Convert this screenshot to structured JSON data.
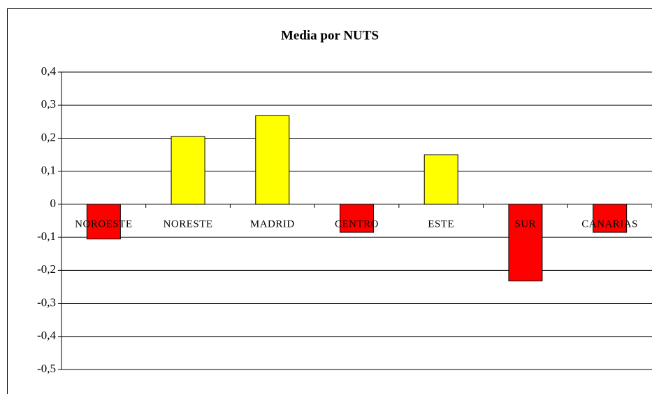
{
  "chart_data": {
    "type": "bar",
    "title": "Media por NUTS",
    "categories": [
      "NOROESTE",
      "NORESTE",
      "MADRID",
      "CENTRO",
      "ESTE",
      "SUR",
      "CANARIAS"
    ],
    "values": [
      -0.105,
      0.205,
      0.268,
      -0.085,
      0.15,
      -0.232,
      -0.085
    ],
    "colors": [
      "#ff0000",
      "#ffff00",
      "#ffff00",
      "#ff0000",
      "#ffff00",
      "#ff0000",
      "#ff0000"
    ],
    "ylim": [
      -0.5,
      0.4
    ],
    "yticks": [
      {
        "value": -0.5,
        "label": "-0,5"
      },
      {
        "value": -0.4,
        "label": "-0,4"
      },
      {
        "value": -0.3,
        "label": "-0,3"
      },
      {
        "value": -0.2,
        "label": "-0,2"
      },
      {
        "value": -0.1,
        "label": "-0,1"
      },
      0,
      {
        "value": 0.1,
        "label": "0,1"
      },
      {
        "value": 0.2,
        "label": "0,2"
      },
      {
        "value": 0.3,
        "label": "0,3"
      },
      {
        "value": 0.4,
        "label": "0,4"
      }
    ],
    "grid": true
  }
}
